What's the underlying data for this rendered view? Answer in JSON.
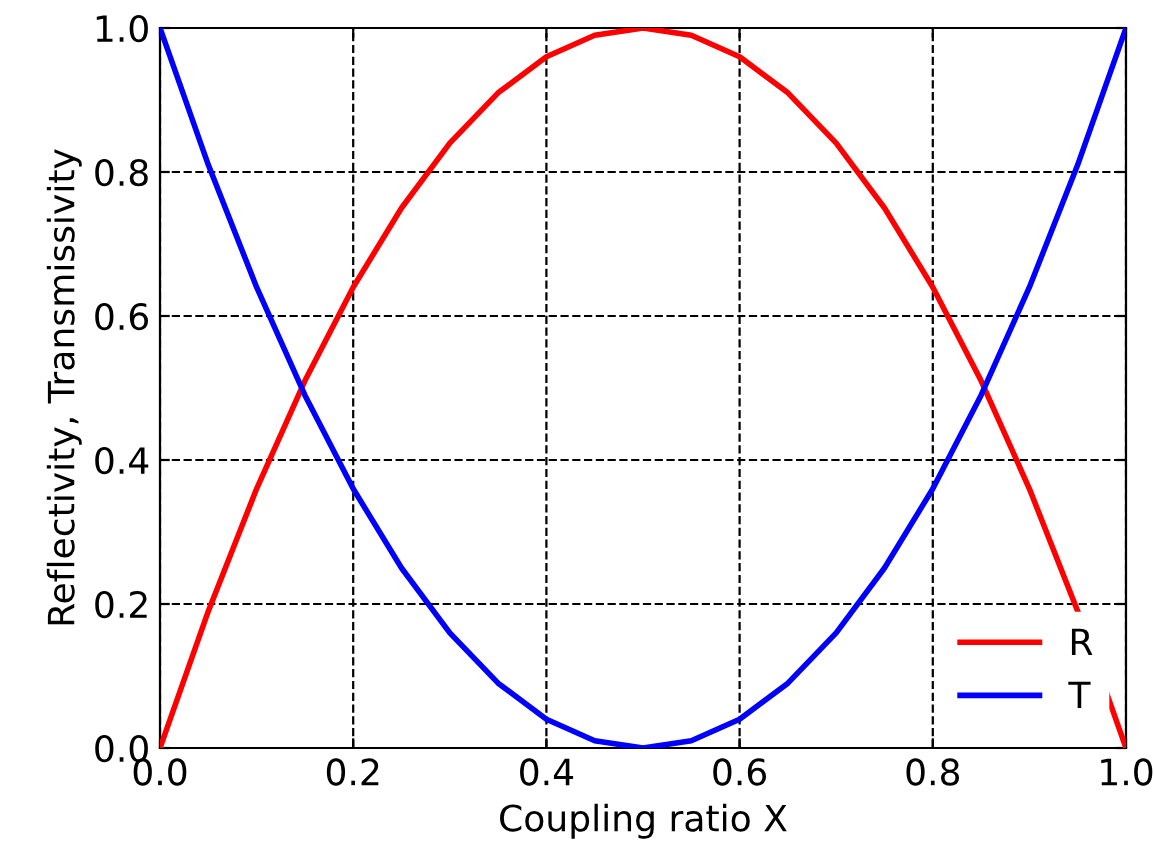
{
  "chart_data": {
    "type": "line",
    "xlabel": "Coupling ratio X",
    "ylabel": "Reflectivity, Transmissivity",
    "x": [
      0,
      0.05,
      0.1,
      0.15,
      0.2,
      0.25,
      0.3,
      0.35,
      0.4,
      0.45,
      0.5,
      0.55,
      0.6,
      0.65,
      0.7,
      0.75,
      0.8,
      0.85,
      0.9,
      0.95,
      1
    ],
    "series": [
      {
        "name": "R",
        "color": "#ff0000",
        "values": [
          0,
          0.19,
          0.36,
          0.51,
          0.64,
          0.75,
          0.84,
          0.91,
          0.96,
          0.99,
          1,
          0.99,
          0.96,
          0.91,
          0.84,
          0.75,
          0.64,
          0.51,
          0.36,
          0.19,
          0
        ]
      },
      {
        "name": "T",
        "color": "#0000ff",
        "values": [
          1,
          0.81,
          0.64,
          0.49,
          0.36,
          0.25,
          0.16,
          0.09,
          0.04,
          0.01,
          0,
          0.01,
          0.04,
          0.09,
          0.16,
          0.25,
          0.36,
          0.49,
          0.64,
          0.81,
          1
        ]
      }
    ],
    "xlim": [
      0,
      1
    ],
    "ylim": [
      0,
      1
    ],
    "xticks": [
      {
        "value": 0,
        "label": "0.0"
      },
      {
        "value": 0.2,
        "label": "0.2"
      },
      {
        "value": 0.4,
        "label": "0.4"
      },
      {
        "value": 0.6,
        "label": "0.6"
      },
      {
        "value": 0.8,
        "label": "0.8"
      },
      {
        "value": 1,
        "label": "1.0"
      }
    ],
    "yticks": [
      {
        "value": 0,
        "label": "0.0"
      },
      {
        "value": 0.2,
        "label": "0.2"
      },
      {
        "value": 0.4,
        "label": "0.4"
      },
      {
        "value": 0.6,
        "label": "0.6"
      },
      {
        "value": 0.8,
        "label": "0.8"
      },
      {
        "value": 1,
        "label": "1.0"
      }
    ],
    "grid": true,
    "legend": "bottom right",
    "line_style": "solid",
    "marker": "none"
  }
}
